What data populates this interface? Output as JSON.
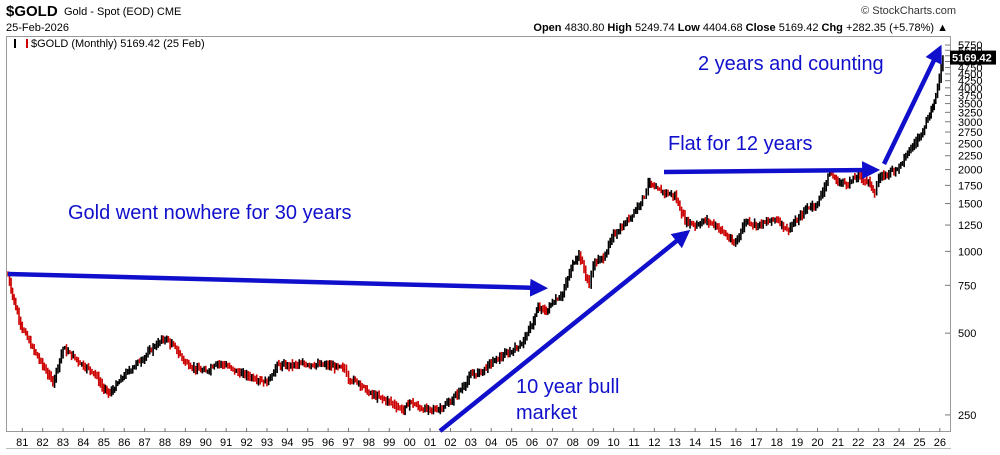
{
  "header": {
    "symbol": "$GOLD",
    "description": "Gold - Spot (EOD)",
    "exchange": "CME",
    "date": "25-Feb-2026",
    "brand": "© StockCharts.com",
    "open_label": "Open",
    "open": "4830.80",
    "high_label": "High",
    "high": "5249.74",
    "low_label": "Low",
    "low": "4404.68",
    "close_label": "Close",
    "close": "5169.42",
    "chg_label": "Chg",
    "chg": "+282.35 (+5.78%)",
    "legend": "$GOLD (Monthly) 5169.42 (25 Feb)"
  },
  "colors": {
    "up": "#000000",
    "down": "#cc0000",
    "annotation": "#1010cc",
    "last_value_bg": "#000000"
  },
  "chart_data": {
    "type": "line",
    "scale": "log",
    "ylim": [
      220,
      6000
    ],
    "xlim": [
      1980.3,
      2026.4
    ],
    "y_ticks": [
      250,
      500,
      750,
      1000,
      1250,
      1500,
      1750,
      2000,
      2250,
      2500,
      2750,
      3000,
      3250,
      3500,
      3750,
      4000,
      4250,
      4500,
      4750,
      5000,
      5250,
      5500,
      5750
    ],
    "x_ticks": [
      "81",
      "82",
      "83",
      "84",
      "85",
      "86",
      "87",
      "88",
      "89",
      "90",
      "91",
      "92",
      "93",
      "94",
      "95",
      "96",
      "97",
      "98",
      "99",
      "00",
      "01",
      "02",
      "03",
      "04",
      "05",
      "06",
      "07",
      "08",
      "09",
      "10",
      "11",
      "12",
      "13",
      "14",
      "15",
      "16",
      "17",
      "18",
      "19",
      "20",
      "21",
      "22",
      "23",
      "24",
      "25",
      "26"
    ],
    "last_value": "5169.42",
    "series": [
      {
        "x": [
          1980.3,
          1980.6,
          1981,
          1981.5,
          1982,
          1982.5,
          1983,
          1983.5,
          1984,
          1984.5,
          1985,
          1985.3,
          1985.6,
          1986,
          1986.5,
          1987,
          1987.5,
          1988,
          1988.5,
          1989,
          1989.5,
          1990,
          1990.5,
          1991,
          1991.5,
          1992,
          1992.5,
          1993,
          1993.5,
          1994,
          1995,
          1996,
          1996.8,
          1997,
          1997.5,
          1998,
          1999,
          1999.7,
          2000,
          2000.5,
          2001,
          2001.5,
          2002,
          2002.5,
          2003,
          2003.5,
          2004,
          2004.5,
          2005,
          2005.5,
          2006,
          2006.3,
          2006.7,
          2007,
          2007.5,
          2008,
          2008.3,
          2008.8,
          2009,
          2009.5,
          2010,
          2010.5,
          2011,
          2011.5,
          2011.7,
          2012,
          2012.5,
          2013,
          2013.5,
          2014,
          2014.5,
          2015,
          2015.5,
          2015.9,
          2016.5,
          2017,
          2017.5,
          2018,
          2018.5,
          2019,
          2019.5,
          2020,
          2020.6,
          2021,
          2021.5,
          2022,
          2022.5,
          2022.8,
          2023,
          2023.5,
          2024,
          2024.5,
          2025,
          2025.5,
          2025.8,
          2026.15
        ],
        "values": [
          820,
          650,
          520,
          440,
          380,
          330,
          440,
          410,
          380,
          360,
          310,
          300,
          320,
          350,
          380,
          410,
          450,
          480,
          440,
          390,
          370,
          360,
          390,
          380,
          360,
          350,
          340,
          330,
          380,
          380,
          385,
          380,
          370,
          340,
          330,
          300,
          280,
          260,
          280,
          265,
          260,
          265,
          280,
          310,
          350,
          360,
          390,
          410,
          430,
          460,
          540,
          620,
          600,
          650,
          700,
          900,
          980,
          750,
          900,
          950,
          1150,
          1250,
          1400,
          1600,
          1800,
          1700,
          1650,
          1600,
          1300,
          1250,
          1300,
          1250,
          1150,
          1060,
          1300,
          1250,
          1280,
          1320,
          1200,
          1300,
          1450,
          1500,
          1950,
          1800,
          1780,
          1900,
          1800,
          1650,
          1850,
          1950,
          2050,
          2350,
          2650,
          3200,
          3700,
          5169.42
        ]
      }
    ]
  },
  "annotations": {
    "a1": "Gold went nowhere for 30 years",
    "a2_line1": "10 year bull",
    "a2_line2": "market",
    "a3": "Flat for 12 years",
    "a4": "2 years and counting"
  }
}
